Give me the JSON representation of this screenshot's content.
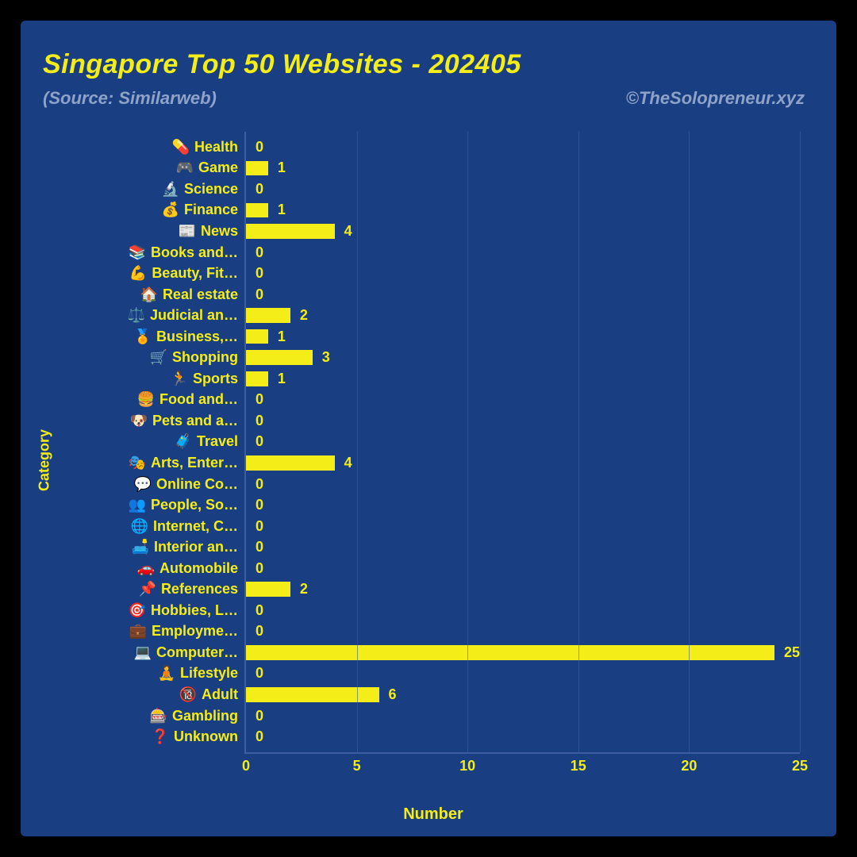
{
  "title": "Singapore Top 50 Websites - 202405",
  "source": "(Source: Similarweb)",
  "credit": "©TheSolopreneur.xyz",
  "chart": {
    "type": "bar-horizontal",
    "xlabel": "Number",
    "ylabel": "Category",
    "xlim": [
      0,
      25
    ],
    "xtick_step": 5,
    "xticks": [
      0,
      5,
      10,
      15,
      20,
      25
    ],
    "bar_color": "#f4ed18",
    "text_color": "#f4ed18",
    "grid_color": "#3d5da0",
    "background_color": "#1a3e82",
    "page_background": "#000000",
    "subtext_color": "#8ea3c7",
    "title_fontsize": 34,
    "label_fontsize": 18,
    "categories": [
      {
        "emoji": "💊",
        "label": "Health",
        "value": 0
      },
      {
        "emoji": "🎮",
        "label": "Game",
        "value": 1
      },
      {
        "emoji": "🔬",
        "label": "Science",
        "value": 0
      },
      {
        "emoji": "💰",
        "label": "Finance",
        "value": 1
      },
      {
        "emoji": "📰",
        "label": "News",
        "value": 4
      },
      {
        "emoji": "📚",
        "label": "Books and…",
        "value": 0
      },
      {
        "emoji": "💪",
        "label": "Beauty, Fit…",
        "value": 0
      },
      {
        "emoji": "🏠",
        "label": "Real estate",
        "value": 0
      },
      {
        "emoji": "⚖️",
        "label": "Judicial an…",
        "value": 2
      },
      {
        "emoji": "🏅",
        "label": "Business,…",
        "value": 1
      },
      {
        "emoji": "🛒",
        "label": "Shopping",
        "value": 3
      },
      {
        "emoji": "🏃",
        "label": "Sports",
        "value": 1
      },
      {
        "emoji": "🍔",
        "label": "Food and…",
        "value": 0
      },
      {
        "emoji": "🐶",
        "label": "Pets and a…",
        "value": 0
      },
      {
        "emoji": "🧳",
        "label": "Travel",
        "value": 0
      },
      {
        "emoji": "🎭",
        "label": "Arts, Enter…",
        "value": 4
      },
      {
        "emoji": "💬",
        "label": "Online Co…",
        "value": 0
      },
      {
        "emoji": "👥",
        "label": "People, So…",
        "value": 0
      },
      {
        "emoji": "🌐",
        "label": "Internet, C…",
        "value": 0
      },
      {
        "emoji": "🛋️",
        "label": "Interior an…",
        "value": 0
      },
      {
        "emoji": "🚗",
        "label": "Automobile",
        "value": 0
      },
      {
        "emoji": "📌",
        "label": "References",
        "value": 2
      },
      {
        "emoji": "🎯",
        "label": "Hobbies, L…",
        "value": 0
      },
      {
        "emoji": "💼",
        "label": "Employme…",
        "value": 0
      },
      {
        "emoji": "💻",
        "label": "Computer…",
        "value": 25
      },
      {
        "emoji": "🧘",
        "label": "Lifestyle",
        "value": 0
      },
      {
        "emoji": "🔞",
        "label": "Adult",
        "value": 6
      },
      {
        "emoji": "🎰",
        "label": "Gambling",
        "value": 0
      },
      {
        "emoji": "❓",
        "label": "Unknown",
        "value": 0
      }
    ]
  }
}
